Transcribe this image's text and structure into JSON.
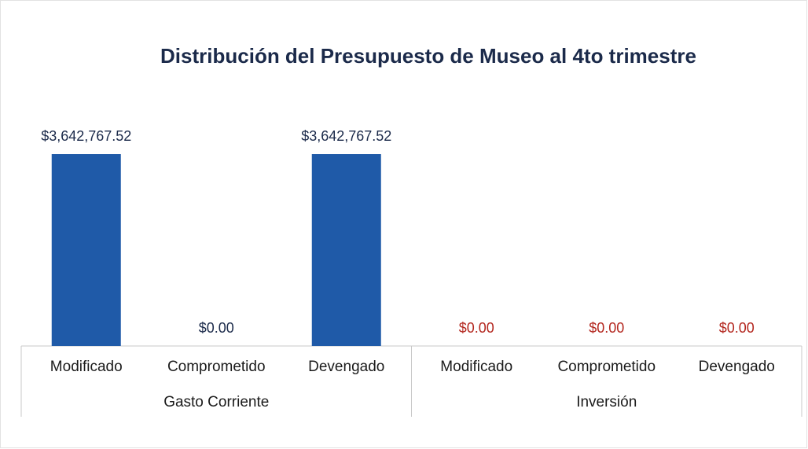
{
  "chart_data": {
    "type": "bar",
    "title": "Distribución del Presupuesto de Museo al 4to trimestre",
    "categories": [
      "Modificado",
      "Comprometido",
      "Devengado",
      "Modificado",
      "Comprometido",
      "Devengado"
    ],
    "values": [
      3642767.52,
      0,
      3642767.52,
      0,
      0,
      0
    ],
    "value_labels": [
      "$3,642,767.52",
      "$0.00",
      "$3,642,767.52",
      "$0.00",
      "$0.00",
      "$0.00"
    ],
    "color": "#1f5aa8",
    "groups": [
      {
        "name": "Gasto Corriente",
        "size": 3,
        "label_color": "#1b2a4a"
      },
      {
        "name": "Inversión",
        "size": 3,
        "label_color": "#b3261e"
      }
    ]
  }
}
